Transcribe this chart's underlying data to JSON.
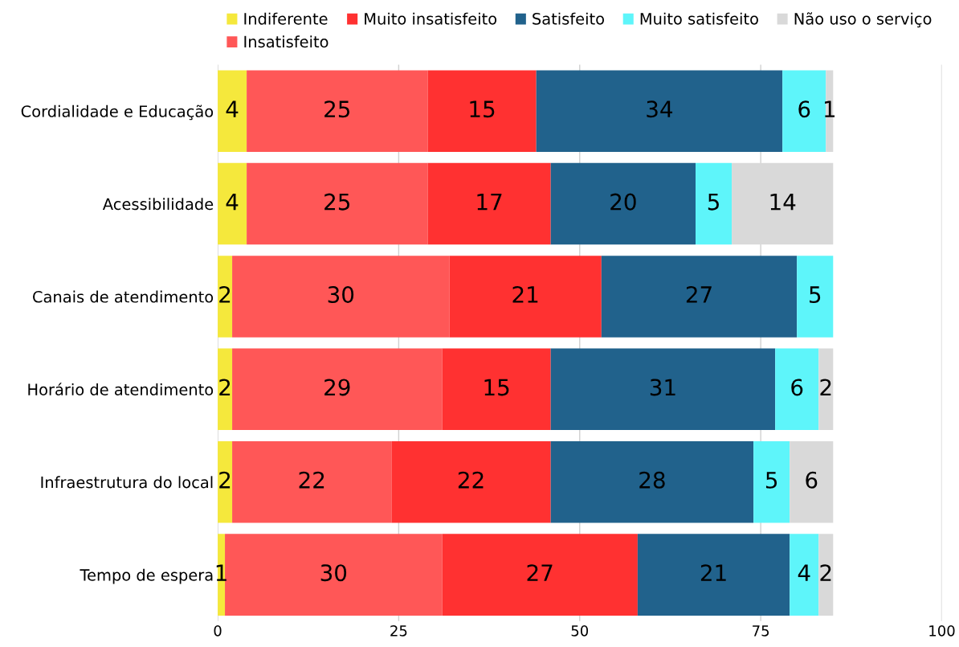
{
  "chart_data": {
    "type": "bar",
    "orientation": "horizontal",
    "stacked": true,
    "data_labels": true,
    "grid": "x",
    "legend": "top",
    "categories": [
      "Cordialidade e Educação",
      "Acessibilidade",
      "Canais de atendimento",
      "Horário de atendimento",
      "Infraestrutura do local",
      "Tempo de espera"
    ],
    "xlim": [
      0,
      100
    ],
    "xticks": [
      0,
      25,
      50,
      75,
      100
    ],
    "series": [
      {
        "name": "Indiferente",
        "color": "#f5e83c",
        "values": [
          4,
          4,
          2,
          2,
          2,
          1
        ]
      },
      {
        "name": "Insatisfeito",
        "color": "#ff5757",
        "values": [
          25,
          25,
          30,
          29,
          22,
          30
        ]
      },
      {
        "name": "Muito insatisfeito",
        "color": "#ff3131",
        "values": [
          15,
          17,
          21,
          15,
          22,
          27
        ]
      },
      {
        "name": "Satisfeito",
        "color": "#21628c",
        "values": [
          34,
          20,
          27,
          31,
          28,
          21
        ]
      },
      {
        "name": "Muito satisfeito",
        "color": "#5ef5fa",
        "values": [
          6,
          5,
          5,
          6,
          5,
          4
        ]
      },
      {
        "name": "Não uso o serviço",
        "color": "#d9d9d9",
        "values": [
          1,
          14,
          null,
          2,
          6,
          2
        ]
      }
    ]
  }
}
